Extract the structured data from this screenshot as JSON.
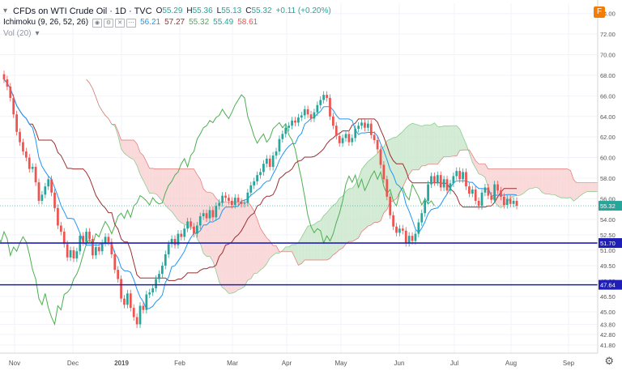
{
  "header": {
    "symbol": "CFDs on WTI Crude Oil · 1D · TVC",
    "o_label": "O",
    "o_value": "55.29",
    "h_label": "H",
    "h_value": "55.36",
    "l_label": "L",
    "l_value": "55.13",
    "c_label": "C",
    "c_value": "55.32",
    "change": "+0.11 (+0.20%)",
    "favorite_badge": "F"
  },
  "indicators": {
    "ichimoku_label": "Ichimoku (9, 26, 52, 26)",
    "values": [
      "56.21",
      "57.27",
      "55.32",
      "55.49",
      "58.61"
    ],
    "vol_label": "Vol (20)"
  },
  "colors": {
    "up": "#26a69a",
    "down": "#ef5350",
    "conversion": "#2196f3",
    "base": "#9c2f2f",
    "lagging": "#4caf50",
    "cloud_green": "#c8e6c9",
    "cloud_red": "#f8cfcf",
    "hline": "#1f1fb8"
  },
  "chart_data": {
    "type": "candlestick",
    "y_axis_ticks": [
      "74.00",
      "72.00",
      "70.00",
      "68.00",
      "66.00",
      "64.00",
      "62.00",
      "60.00",
      "58.00",
      "56.00",
      "54.00",
      "52.50",
      "51.00",
      "49.50",
      "48.00",
      "46.50",
      "45.00",
      "43.80",
      "42.80",
      "41.80"
    ],
    "x_axis_labels": [
      "Nov",
      "Dec",
      "2019",
      "Feb",
      "Mar",
      "Apr",
      "May",
      "Jun",
      "Jul",
      "Aug",
      "Sep"
    ],
    "ylim": [
      41.0,
      75.0
    ],
    "price_badge": "55.32",
    "horizontal_levels": [
      {
        "value": 51.7,
        "label": "51.70"
      },
      {
        "value": 47.64,
        "label": "47.64"
      }
    ],
    "closes": [
      67.6,
      66.9,
      65.8,
      64.2,
      62.5,
      61.5,
      60.6,
      60.0,
      58.9,
      59.1,
      57.6,
      55.8,
      56.4,
      57.2,
      57.9,
      56.6,
      55.1,
      53.4,
      52.8,
      51.6,
      50.3,
      51.0,
      50.2,
      50.9,
      52.4,
      51.8,
      52.8,
      52.1,
      50.5,
      51.3,
      50.9,
      51.7,
      52.3,
      51.8,
      50.6,
      49.1,
      48.2,
      46.3,
      45.7,
      46.8,
      45.4,
      44.5,
      43.8,
      45.6,
      45.2,
      46.7,
      46.9,
      47.3,
      48.2,
      48.7,
      49.5,
      50.6,
      51.6,
      52.1,
      51.5,
      52.6,
      52.3,
      53.1,
      53.8,
      53.3,
      52.6,
      53.4,
      54.3,
      54.6,
      54.1,
      54.9,
      54.2,
      55.3,
      55.6,
      56.3,
      56.1,
      55.8,
      55.4,
      56.1,
      55.7,
      55.5,
      55.6,
      56.6,
      57.3,
      57.7,
      58.3,
      58.6,
      59.4,
      59.9,
      59.1,
      60.2,
      60.6,
      61.8,
      62.3,
      62.9,
      63.1,
      63.6,
      63.4,
      63.9,
      64.1,
      64.7,
      64.2,
      63.8,
      64.4,
      65.1,
      65.6,
      66.1,
      65.8,
      64.0,
      63.1,
      62.1,
      61.4,
      61.9,
      62.3,
      61.5,
      61.9,
      62.8,
      63.1,
      63.4,
      62.9,
      63.3,
      62.2,
      61.7,
      60.8,
      59.3,
      57.9,
      56.2,
      54.4,
      53.3,
      52.7,
      53.1,
      52.9,
      51.7,
      52.4,
      51.9,
      52.6,
      53.7,
      54.6,
      55.8,
      57.4,
      58.2,
      57.6,
      58.3,
      57.1,
      57.9,
      56.8,
      57.5,
      58.2,
      58.7,
      57.9,
      58.6,
      57.2,
      56.5,
      56.9,
      55.8,
      55.3,
      56.6,
      57.1,
      56.3,
      55.9,
      57.4,
      56.8,
      56.2,
      55.4,
      56.0,
      55.5,
      55.8,
      55.32
    ]
  }
}
